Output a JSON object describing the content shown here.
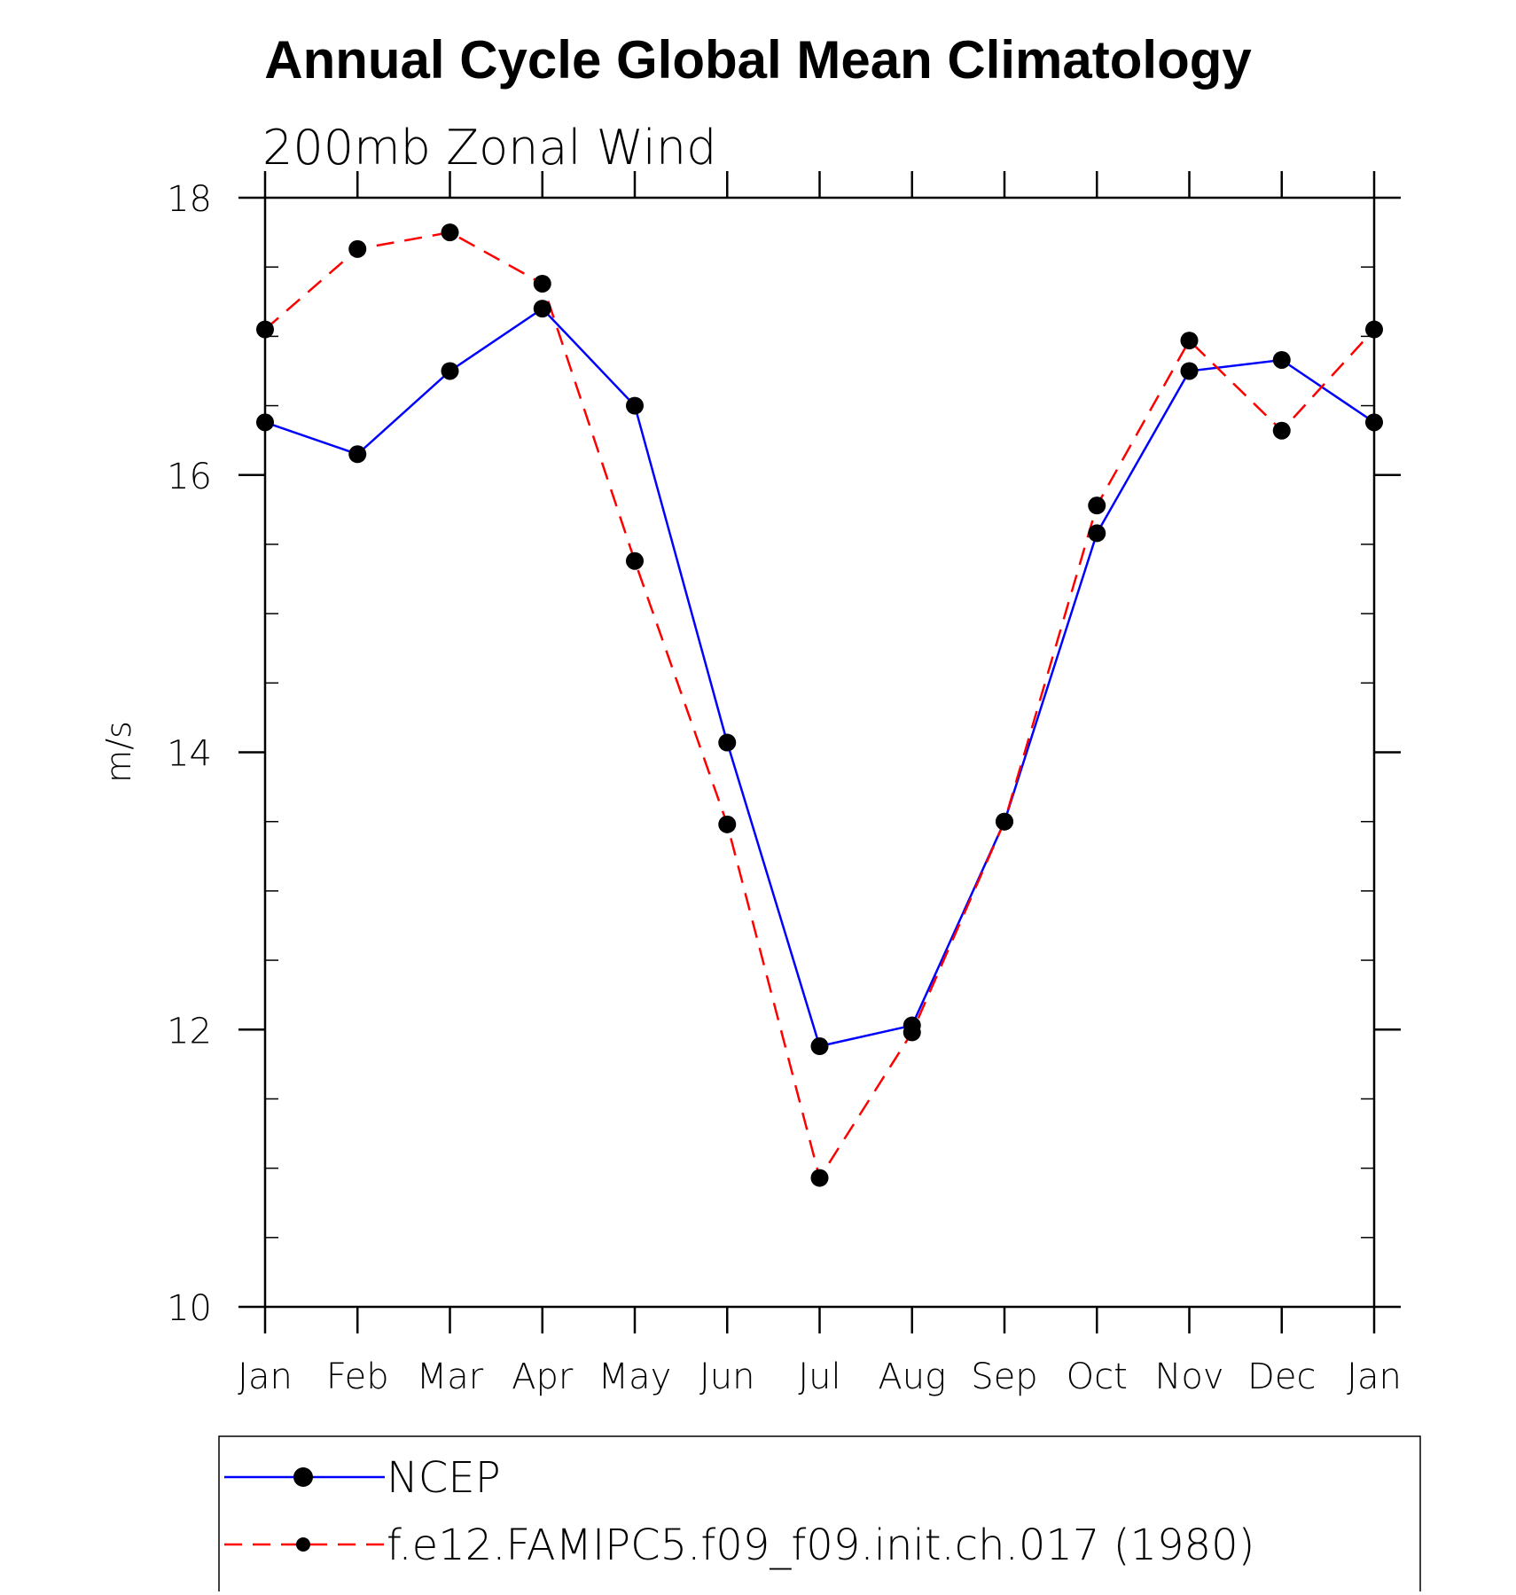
{
  "chart_data": {
    "type": "line",
    "title": "Annual Cycle Global Mean Climatology",
    "subtitle": "200mb Zonal Wind",
    "xlabel": "",
    "ylabel": "m/s",
    "categories": [
      "Jan",
      "Feb",
      "Mar",
      "Apr",
      "May",
      "Jun",
      "Jul",
      "Aug",
      "Sep",
      "Oct",
      "Nov",
      "Dec",
      "Jan"
    ],
    "ylim": [
      10,
      18
    ],
    "yticks": [
      10,
      12,
      14,
      16,
      18
    ],
    "grid": false,
    "legend_position": "bottom",
    "series": [
      {
        "name": "NCEP",
        "color": "#0000ff",
        "line_style": "solid",
        "marker": "filled-circle",
        "values": [
          16.38,
          16.15,
          16.75,
          17.2,
          16.5,
          14.07,
          11.88,
          12.03,
          13.5,
          15.58,
          16.75,
          16.83,
          16.38
        ]
      },
      {
        "name": "f.e12.FAMIPC5.f09_f09.init.ch.017 (1980)",
        "color": "#ff0000",
        "line_style": "dashed",
        "marker": "filled-circle",
        "values": [
          17.05,
          17.63,
          17.75,
          17.38,
          15.38,
          13.48,
          10.93,
          11.98,
          13.5,
          15.78,
          16.97,
          16.32,
          17.05
        ]
      }
    ]
  }
}
